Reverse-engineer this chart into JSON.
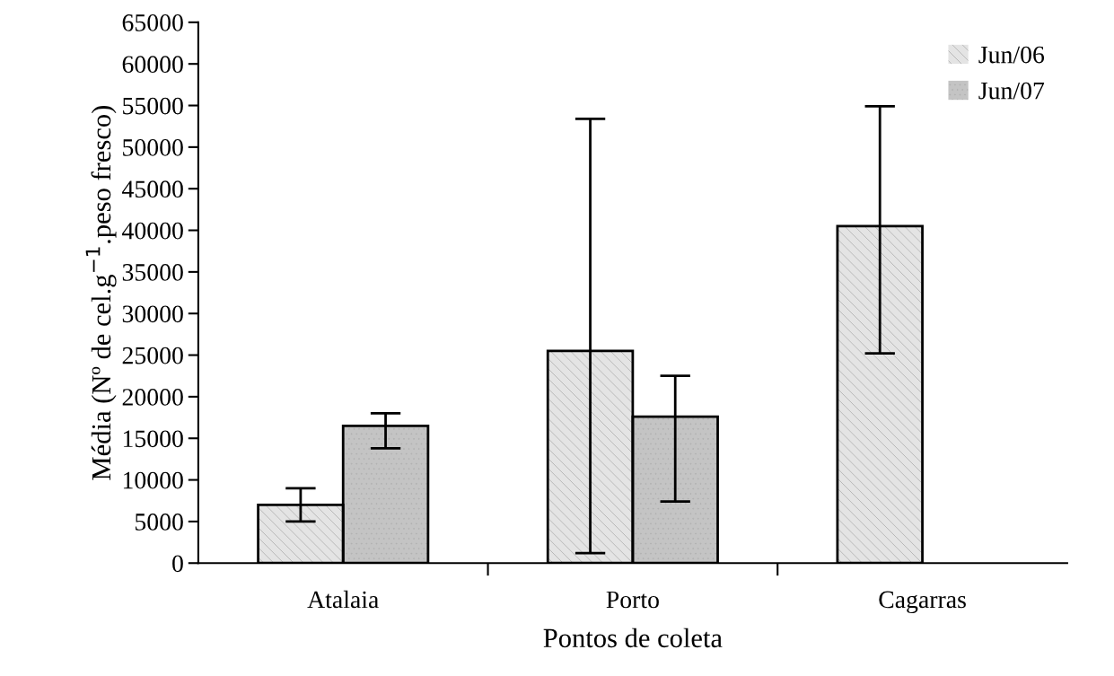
{
  "chart_data": {
    "type": "bar",
    "xlabel": "Pontos de coleta",
    "ylabel": "Média (Nº de cel.g$^{−1}$.peso fresco)",
    "categories": [
      "Atalaia",
      "Porto",
      "Cagarras"
    ],
    "series": [
      {
        "name": "Jun/06",
        "color": "#e4e4e4",
        "values": [
          7000,
          25500,
          40500
        ],
        "errors": [
          [
            5000,
            9000
          ],
          [
            1200,
            53400
          ],
          [
            25200,
            54900
          ]
        ]
      },
      {
        "name": "Jun/07",
        "color": "#c4c4c4",
        "values": [
          16500,
          17600,
          null
        ],
        "errors": [
          [
            13800,
            18000
          ],
          [
            7400,
            22500
          ],
          null
        ]
      }
    ],
    "ylim": [
      0,
      65000
    ],
    "yticks": [
      0,
      5000,
      10000,
      15000,
      20000,
      25000,
      30000,
      35000,
      40000,
      45000,
      50000,
      55000,
      60000,
      65000
    ],
    "grid": false,
    "legend": "top right"
  }
}
